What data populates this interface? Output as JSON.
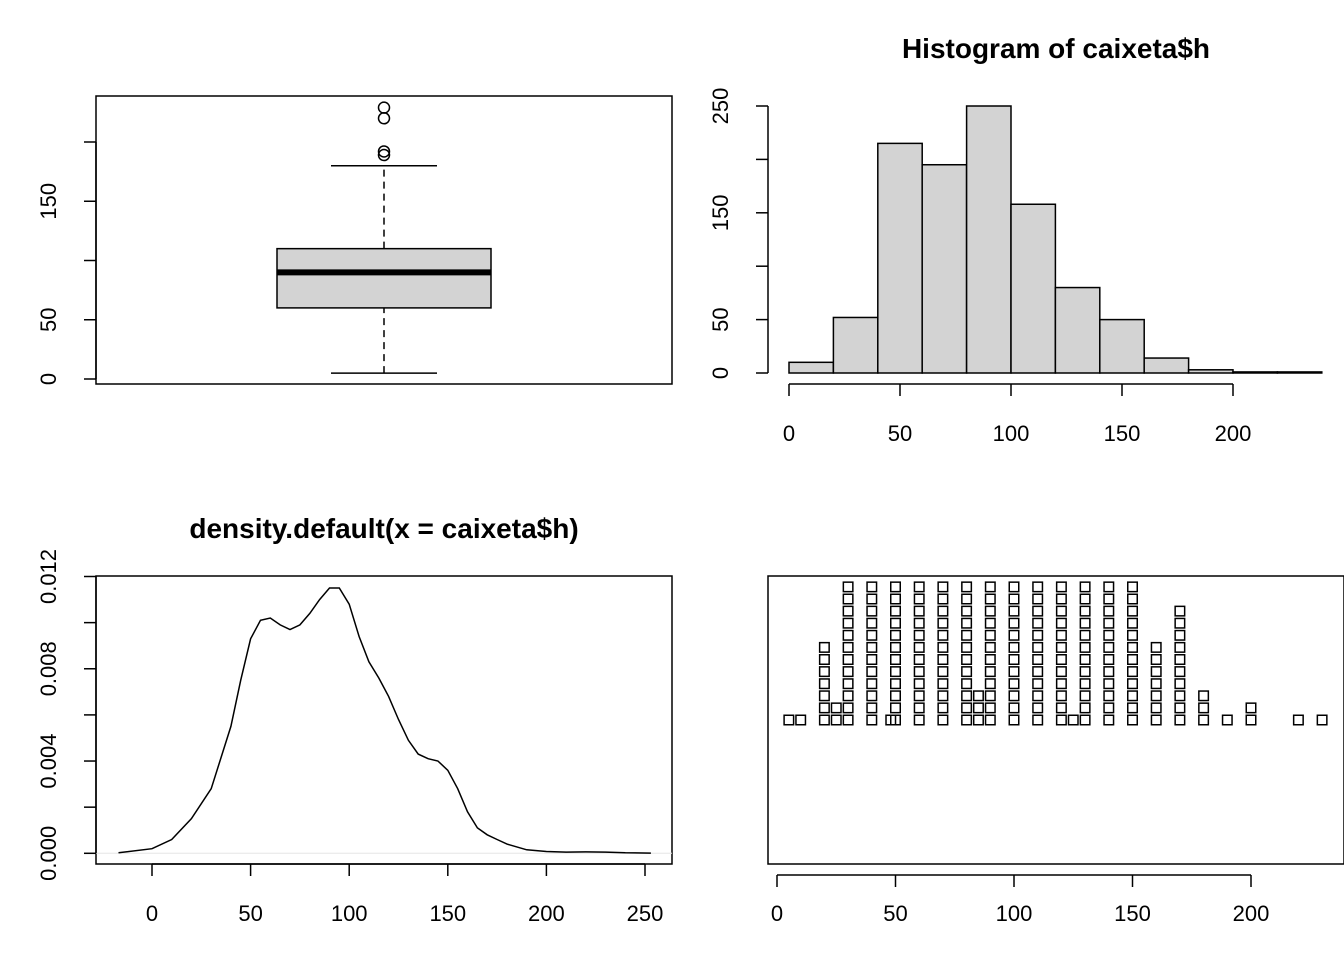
{
  "chart_data": [
    {
      "type": "boxplot",
      "title": "",
      "ylim": [
        0,
        230
      ],
      "yticks": [
        0,
        50,
        100,
        150,
        200
      ],
      "ytick_labels": [
        "0",
        "50",
        "",
        "150",
        ""
      ],
      "box": {
        "whisker_low": 5,
        "q1": 60,
        "median": 90,
        "q3": 110,
        "whisker_high": 180
      },
      "outliers": [
        189,
        192,
        220,
        229
      ],
      "colors": {
        "fill": "#d3d3d3",
        "stroke": "#000000"
      }
    },
    {
      "type": "bar",
      "title": "Histogram of caixeta$h",
      "bins": [
        [
          0,
          20
        ],
        [
          20,
          40
        ],
        [
          40,
          60
        ],
        [
          60,
          80
        ],
        [
          80,
          100
        ],
        [
          100,
          120
        ],
        [
          120,
          140
        ],
        [
          140,
          160
        ],
        [
          160,
          180
        ],
        [
          180,
          200
        ],
        [
          200,
          220
        ],
        [
          220,
          240
        ]
      ],
      "values": [
        10,
        52,
        215,
        195,
        250,
        158,
        80,
        50,
        14,
        3,
        1,
        1
      ],
      "xticks": [
        0,
        50,
        100,
        150,
        200
      ],
      "xtick_labels": [
        "0",
        "50",
        "100",
        "150",
        "200"
      ],
      "yticks": [
        0,
        50,
        100,
        150,
        200,
        250
      ],
      "ytick_labels": [
        "0",
        "50",
        "",
        "150",
        "",
        "250"
      ],
      "colors": {
        "fill": "#d3d3d3",
        "stroke": "#000000"
      }
    },
    {
      "type": "line",
      "title": "density.default(x = caixeta$h)",
      "x": [
        -17,
        0,
        10,
        20,
        30,
        40,
        45,
        50,
        55,
        60,
        65,
        70,
        75,
        80,
        85,
        90,
        95,
        100,
        105,
        110,
        115,
        120,
        125,
        130,
        135,
        140,
        145,
        150,
        155,
        160,
        165,
        170,
        175,
        180,
        190,
        200,
        210,
        220,
        230,
        240,
        253
      ],
      "y": [
        2e-05,
        0.0002,
        0.0006,
        0.0015,
        0.0028,
        0.0055,
        0.0075,
        0.0093,
        0.0101,
        0.0102,
        0.0099,
        0.0097,
        0.0099,
        0.0104,
        0.011,
        0.0115,
        0.0115,
        0.0108,
        0.0094,
        0.0083,
        0.0076,
        0.0068,
        0.0058,
        0.0049,
        0.0043,
        0.0041,
        0.004,
        0.0036,
        0.0028,
        0.0018,
        0.0011,
        0.0008,
        0.0006,
        0.0004,
        0.00015,
        8e-05,
        5e-05,
        6e-05,
        5e-05,
        2e-05,
        1e-05
      ],
      "xticks": [
        0,
        50,
        100,
        150,
        200,
        250
      ],
      "xtick_labels": [
        "0",
        "50",
        "100",
        "150",
        "200",
        "250"
      ],
      "yticks": [
        0,
        0.002,
        0.004,
        0.006,
        0.008,
        0.01,
        0.012
      ],
      "ytick_labels": [
        "0.000",
        "",
        "0.004",
        "",
        "0.008",
        "",
        "0.012"
      ],
      "colors": {
        "line": "#000000",
        "baseline": "#e6e6e6"
      }
    },
    {
      "type": "scatter",
      "title": "",
      "stacks": [
        {
          "x": 5,
          "count": 1
        },
        {
          "x": 10,
          "count": 1
        },
        {
          "x": 20,
          "count": 7
        },
        {
          "x": 25,
          "count": 2
        },
        {
          "x": 30,
          "count": 12
        },
        {
          "x": 40,
          "count": 12
        },
        {
          "x": 48,
          "count": 1
        },
        {
          "x": 50,
          "count": 12
        },
        {
          "x": 60,
          "count": 12
        },
        {
          "x": 70,
          "count": 12
        },
        {
          "x": 80,
          "count": 12
        },
        {
          "x": 85,
          "count": 3
        },
        {
          "x": 90,
          "count": 12
        },
        {
          "x": 100,
          "count": 12
        },
        {
          "x": 110,
          "count": 12
        },
        {
          "x": 120,
          "count": 12
        },
        {
          "x": 125,
          "count": 1
        },
        {
          "x": 130,
          "count": 12
        },
        {
          "x": 140,
          "count": 12
        },
        {
          "x": 150,
          "count": 12
        },
        {
          "x": 160,
          "count": 7
        },
        {
          "x": 170,
          "count": 10
        },
        {
          "x": 180,
          "count": 3
        },
        {
          "x": 190,
          "count": 1
        },
        {
          "x": 200,
          "count": 2
        },
        {
          "x": 220,
          "count": 1
        },
        {
          "x": 230,
          "count": 1
        }
      ],
      "xticks": [
        0,
        50,
        100,
        150,
        200
      ],
      "xtick_labels": [
        "0",
        "50",
        "100",
        "150",
        "200"
      ],
      "colors": {
        "marker": "#000000"
      }
    }
  ]
}
